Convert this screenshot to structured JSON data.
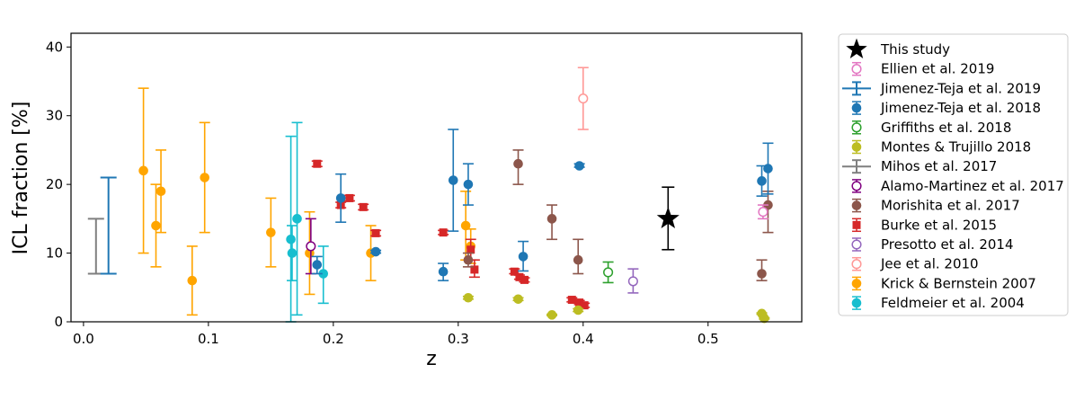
{
  "chart_data": {
    "type": "scatter",
    "title": "",
    "xlabel": "z",
    "ylabel": "ICL fraction [%]",
    "xlim": [
      -0.01,
      0.575
    ],
    "ylim": [
      0,
      42
    ],
    "xticks": [
      0.0,
      0.1,
      0.2,
      0.3,
      0.4,
      0.5
    ],
    "xtick_labels": [
      "0.0",
      "0.1",
      "0.2",
      "0.3",
      "0.4",
      "0.5"
    ],
    "yticks": [
      0,
      10,
      20,
      30,
      40
    ],
    "ytick_labels": [
      "0",
      "10",
      "20",
      "30",
      "40"
    ],
    "grid": false,
    "legend_position": "outside-right",
    "series": [
      {
        "name": "This study",
        "color": "#000000",
        "marker": "star",
        "points": [
          {
            "x": 0.468,
            "y": 15.0,
            "ylo": 10.5,
            "yhi": 19.6
          }
        ]
      },
      {
        "name": "Ellien et al. 2019",
        "color": "#e377c2",
        "marker": "open-circle",
        "points": [
          {
            "x": 0.544,
            "y": 16.0,
            "ylo": 15.0,
            "yhi": 17.0
          }
        ]
      },
      {
        "name": "Jimenez-Teja et al. 2019",
        "color": "#1f77b4",
        "marker": "none",
        "points": [
          {
            "x": 0.02,
            "y": 14.0,
            "ylo": 7.0,
            "yhi": 21.0
          }
        ]
      },
      {
        "name": "Jimenez-Teja et al. 2018",
        "color": "#1f77b4",
        "marker": "filled-circle",
        "points": [
          {
            "x": 0.187,
            "y": 8.3,
            "ylo": 7.0,
            "yhi": 9.5
          },
          {
            "x": 0.206,
            "y": 18.0,
            "ylo": 14.5,
            "yhi": 21.5
          },
          {
            "x": 0.234,
            "y": 10.2,
            "ylo": 10.0,
            "yhi": 10.4
          },
          {
            "x": 0.288,
            "y": 7.3,
            "ylo": 6.0,
            "yhi": 8.5
          },
          {
            "x": 0.296,
            "y": 20.6,
            "ylo": 13.2,
            "yhi": 28.0
          },
          {
            "x": 0.308,
            "y": 20.0,
            "ylo": 17.0,
            "yhi": 23.0
          },
          {
            "x": 0.352,
            "y": 9.5,
            "ylo": 7.4,
            "yhi": 11.7
          },
          {
            "x": 0.397,
            "y": 22.7,
            "ylo": 22.5,
            "yhi": 23.0
          },
          {
            "x": 0.543,
            "y": 20.5,
            "ylo": 18.3,
            "yhi": 22.7
          },
          {
            "x": 0.548,
            "y": 22.3,
            "ylo": 18.6,
            "yhi": 26.0
          }
        ]
      },
      {
        "name": "Griffiths et al. 2018",
        "color": "#2ca02c",
        "marker": "open-circle",
        "points": [
          {
            "x": 0.42,
            "y": 7.2,
            "ylo": 5.7,
            "yhi": 8.7
          }
        ]
      },
      {
        "name": "Montes & Trujillo 2018",
        "color": "#bcbd22",
        "marker": "filled-circle",
        "points": [
          {
            "x": 0.308,
            "y": 3.5,
            "ylo": 3.3,
            "yhi": 3.7
          },
          {
            "x": 0.348,
            "y": 3.3,
            "ylo": 3.1,
            "yhi": 3.5
          },
          {
            "x": 0.375,
            "y": 1.0,
            "ylo": 0.9,
            "yhi": 1.1
          },
          {
            "x": 0.396,
            "y": 1.7,
            "ylo": 1.5,
            "yhi": 1.9
          },
          {
            "x": 0.543,
            "y": 1.2,
            "ylo": 1.1,
            "yhi": 1.3
          },
          {
            "x": 0.545,
            "y": 0.5,
            "ylo": 0.4,
            "yhi": 0.6
          }
        ]
      },
      {
        "name": "Mihos et al. 2017",
        "color": "#7f7f7f",
        "marker": "none",
        "points": [
          {
            "x": 0.01,
            "y": 11.0,
            "ylo": 7.0,
            "yhi": 15.0
          }
        ]
      },
      {
        "name": "Alamo-Martinez et al. 2017",
        "color": "#800080",
        "marker": "open-circle",
        "points": [
          {
            "x": 0.182,
            "y": 11.0,
            "ylo": 7.0,
            "yhi": 15.0
          }
        ]
      },
      {
        "name": "Morishita et al. 2017",
        "color": "#8c564b",
        "marker": "filled-circle",
        "points": [
          {
            "x": 0.308,
            "y": 9.0,
            "ylo": 8.0,
            "yhi": 10.0
          },
          {
            "x": 0.348,
            "y": 23.0,
            "ylo": 20.0,
            "yhi": 25.0
          },
          {
            "x": 0.375,
            "y": 15.0,
            "ylo": 12.0,
            "yhi": 17.0
          },
          {
            "x": 0.396,
            "y": 9.0,
            "ylo": 7.0,
            "yhi": 12.0
          },
          {
            "x": 0.543,
            "y": 7.0,
            "ylo": 6.0,
            "yhi": 9.0
          },
          {
            "x": 0.548,
            "y": 17.0,
            "ylo": 13.0,
            "yhi": 19.0
          }
        ]
      },
      {
        "name": "Burke et al. 2015",
        "color": "#d62728",
        "marker": "square",
        "points": [
          {
            "x": 0.187,
            "y": 23.0,
            "ylo": 22.6,
            "yhi": 23.4
          },
          {
            "x": 0.206,
            "y": 17.0,
            "ylo": 16.6,
            "yhi": 17.4
          },
          {
            "x": 0.213,
            "y": 18.0,
            "ylo": 17.6,
            "yhi": 18.4
          },
          {
            "x": 0.224,
            "y": 16.7,
            "ylo": 16.3,
            "yhi": 17.1
          },
          {
            "x": 0.234,
            "y": 12.9,
            "ylo": 12.5,
            "yhi": 13.3
          },
          {
            "x": 0.288,
            "y": 13.0,
            "ylo": 12.7,
            "yhi": 13.3
          },
          {
            "x": 0.31,
            "y": 10.5,
            "ylo": 9.0,
            "yhi": 12.0
          },
          {
            "x": 0.313,
            "y": 7.6,
            "ylo": 6.5,
            "yhi": 9.0
          },
          {
            "x": 0.345,
            "y": 7.3,
            "ylo": 7.0,
            "yhi": 7.7
          },
          {
            "x": 0.349,
            "y": 6.5,
            "ylo": 6.2,
            "yhi": 6.8
          },
          {
            "x": 0.353,
            "y": 6.1,
            "ylo": 5.8,
            "yhi": 6.4
          },
          {
            "x": 0.391,
            "y": 3.2,
            "ylo": 2.9,
            "yhi": 3.5
          },
          {
            "x": 0.397,
            "y": 2.8,
            "ylo": 2.5,
            "yhi": 3.1
          },
          {
            "x": 0.401,
            "y": 2.4,
            "ylo": 2.1,
            "yhi": 2.7
          }
        ]
      },
      {
        "name": "Presotto et al. 2014",
        "color": "#9467bd",
        "marker": "open-circle",
        "points": [
          {
            "x": 0.44,
            "y": 5.9,
            "ylo": 4.2,
            "yhi": 7.7
          }
        ]
      },
      {
        "name": "Jee et al. 2010",
        "color": "#ff9896",
        "marker": "open-circle",
        "points": [
          {
            "x": 0.4,
            "y": 32.5,
            "ylo": 28.0,
            "yhi": 37.0
          }
        ]
      },
      {
        "name": "Krick & Bernstein 2007",
        "color": "#ffa500",
        "marker": "filled-circle",
        "points": [
          {
            "x": 0.048,
            "y": 22.0,
            "ylo": 10.0,
            "yhi": 34.0
          },
          {
            "x": 0.058,
            "y": 14.0,
            "ylo": 8.0,
            "yhi": 20.0
          },
          {
            "x": 0.062,
            "y": 19.0,
            "ylo": 13.0,
            "yhi": 25.0
          },
          {
            "x": 0.087,
            "y": 6.0,
            "ylo": 1.0,
            "yhi": 11.0
          },
          {
            "x": 0.097,
            "y": 21.0,
            "ylo": 13.0,
            "yhi": 29.0
          },
          {
            "x": 0.15,
            "y": 13.0,
            "ylo": 8.0,
            "yhi": 18.0
          },
          {
            "x": 0.181,
            "y": 10.0,
            "ylo": 4.0,
            "yhi": 16.0
          },
          {
            "x": 0.23,
            "y": 10.0,
            "ylo": 6.0,
            "yhi": 14.0
          },
          {
            "x": 0.306,
            "y": 14.0,
            "ylo": 9.0,
            "yhi": 19.0
          },
          {
            "x": 0.31,
            "y": 11.0,
            "ylo": 8.5,
            "yhi": 13.5
          }
        ]
      },
      {
        "name": "Feldmeier et al. 2004",
        "color": "#17becf",
        "marker": "filled-circle",
        "points": [
          {
            "x": 0.166,
            "y": 12.0,
            "ylo": 0.0,
            "yhi": 27.0
          },
          {
            "x": 0.167,
            "y": 10.0,
            "ylo": 6.0,
            "yhi": 14.0
          },
          {
            "x": 0.171,
            "y": 15.0,
            "ylo": 1.0,
            "yhi": 29.0
          },
          {
            "x": 0.192,
            "y": 7.0,
            "ylo": 2.7,
            "yhi": 11.0
          }
        ]
      }
    ]
  }
}
